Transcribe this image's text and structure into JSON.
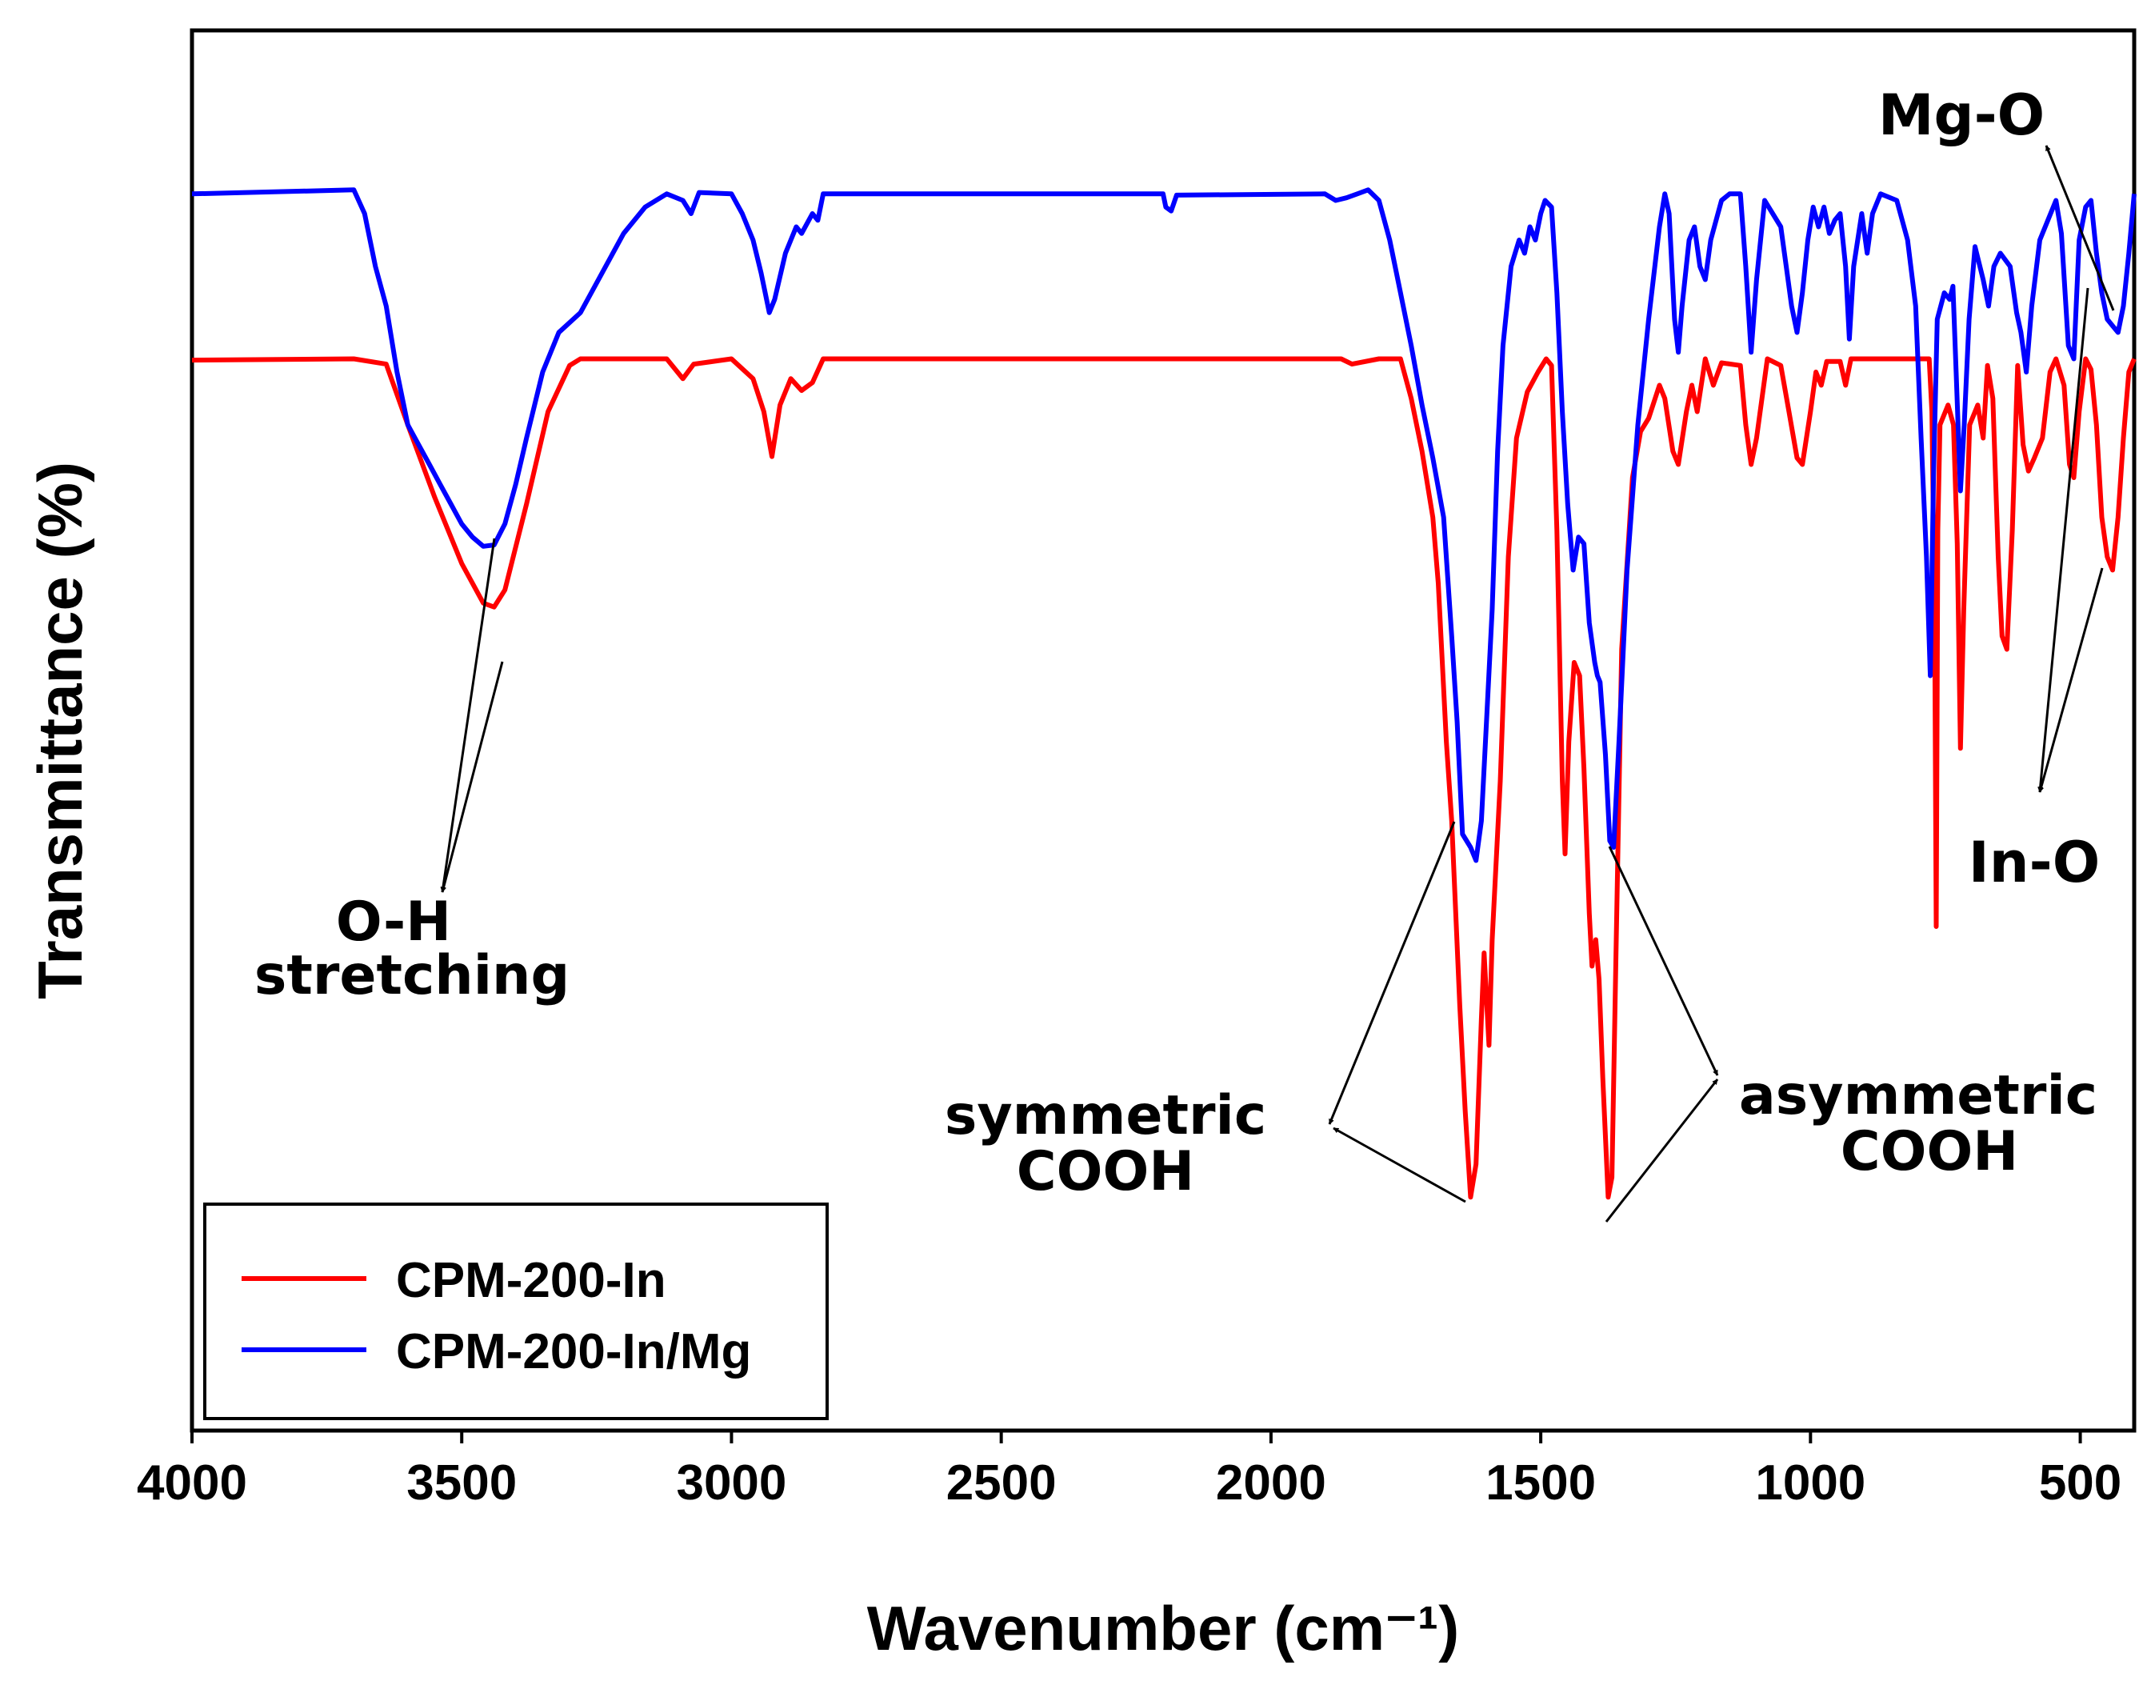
{
  "chart_data": {
    "type": "line",
    "title": "",
    "xlabel": "Wavenumber (cm⁻¹)",
    "ylabel": "Transmittance (%)",
    "xlim": [
      4000,
      400
    ],
    "ylim": [
      0,
      100
    ],
    "x_ticks": [
      {
        "value": 4000,
        "label": "4000"
      },
      {
        "value": 3500,
        "label": "3500"
      },
      {
        "value": 3000,
        "label": "3000"
      },
      {
        "value": 2500,
        "label": "2500"
      },
      {
        "value": 2000,
        "label": "2000"
      },
      {
        "value": 1500,
        "label": "1500"
      },
      {
        "value": 1000,
        "label": "1000"
      },
      {
        "value": 500,
        "label": "500"
      }
    ],
    "y_ticks_shown": false,
    "grid": false,
    "legend_position": "bottom-left",
    "series": [
      {
        "name": "CPM-200-In",
        "color": "#ff0000",
        "points": [
          [
            4000,
            78.9
          ],
          [
            3700,
            79
          ],
          [
            3640,
            78.6
          ],
          [
            3600,
            74
          ],
          [
            3550,
            68.5
          ],
          [
            3500,
            63.5
          ],
          [
            3460,
            60.5
          ],
          [
            3440,
            60.2
          ],
          [
            3420,
            61.5
          ],
          [
            3380,
            68
          ],
          [
            3340,
            75
          ],
          [
            3300,
            78.5
          ],
          [
            3280,
            79
          ],
          [
            3120,
            79
          ],
          [
            3090,
            77.5
          ],
          [
            3070,
            78.6
          ],
          [
            3000,
            79
          ],
          [
            2960,
            77.5
          ],
          [
            2940,
            75
          ],
          [
            2925,
            71.6
          ],
          [
            2910,
            75.5
          ],
          [
            2890,
            77.5
          ],
          [
            2870,
            76.6
          ],
          [
            2850,
            77.2
          ],
          [
            2830,
            79
          ],
          [
            1870,
            79
          ],
          [
            1850,
            78.6
          ],
          [
            1800,
            79
          ],
          [
            1760,
            79
          ],
          [
            1740,
            76
          ],
          [
            1720,
            72
          ],
          [
            1700,
            67
          ],
          [
            1690,
            62
          ],
          [
            1675,
            50
          ],
          [
            1665,
            44
          ],
          [
            1650,
            30
          ],
          [
            1640,
            22
          ],
          [
            1630,
            15.5
          ],
          [
            1620,
            18
          ],
          [
            1610,
            29
          ],
          [
            1605,
            34
          ],
          [
            1596,
            27
          ],
          [
            1590,
            35
          ],
          [
            1575,
            47
          ],
          [
            1560,
            64
          ],
          [
            1545,
            73
          ],
          [
            1525,
            76.5
          ],
          [
            1505,
            78
          ],
          [
            1490,
            79
          ],
          [
            1480,
            78.5
          ],
          [
            1470,
            66
          ],
          [
            1460,
            47
          ],
          [
            1455,
            41.5
          ],
          [
            1448,
            50
          ],
          [
            1438,
            56
          ],
          [
            1428,
            55
          ],
          [
            1420,
            48
          ],
          [
            1410,
            37
          ],
          [
            1405,
            33
          ],
          [
            1398,
            35
          ],
          [
            1392,
            32
          ],
          [
            1385,
            24.5
          ],
          [
            1375,
            15.5
          ],
          [
            1368,
            17
          ],
          [
            1360,
            35
          ],
          [
            1350,
            57
          ],
          [
            1330,
            70
          ],
          [
            1315,
            73.5
          ],
          [
            1300,
            74.5
          ],
          [
            1280,
            77
          ],
          [
            1270,
            76
          ],
          [
            1255,
            72
          ],
          [
            1245,
            71
          ],
          [
            1230,
            75
          ],
          [
            1220,
            77
          ],
          [
            1210,
            75
          ],
          [
            1195,
            79
          ],
          [
            1180,
            77
          ],
          [
            1165,
            78.7
          ],
          [
            1130,
            78.5
          ],
          [
            1120,
            74
          ],
          [
            1110,
            71
          ],
          [
            1100,
            73
          ],
          [
            1080,
            79
          ],
          [
            1055,
            78.5
          ],
          [
            1040,
            75
          ],
          [
            1025,
            71.5
          ],
          [
            1015,
            71
          ],
          [
            1000,
            75
          ],
          [
            990,
            78
          ],
          [
            980,
            77
          ],
          [
            970,
            78.8
          ],
          [
            945,
            78.8
          ],
          [
            935,
            77
          ],
          [
            925,
            79
          ],
          [
            900,
            79
          ],
          [
            780,
            79
          ],
          [
            775,
            75
          ],
          [
            770,
            60
          ],
          [
            767,
            36
          ],
          [
            764,
            66
          ],
          [
            760,
            74
          ],
          [
            745,
            75.5
          ],
          [
            735,
            74
          ],
          [
            728,
            65
          ],
          [
            722,
            49.5
          ],
          [
            716,
            60
          ],
          [
            705,
            74
          ],
          [
            690,
            75.5
          ],
          [
            680,
            73
          ],
          [
            672,
            78.5
          ],
          [
            662,
            76
          ],
          [
            652,
            64
          ],
          [
            645,
            58
          ],
          [
            636,
            57
          ],
          [
            626,
            66
          ],
          [
            616,
            78.5
          ],
          [
            606,
            72.5
          ],
          [
            596,
            70.5
          ],
          [
            585,
            71.5
          ],
          [
            570,
            73
          ],
          [
            556,
            78
          ],
          [
            545,
            79
          ],
          [
            530,
            77
          ],
          [
            520,
            71
          ],
          [
            512,
            70
          ],
          [
            502,
            75
          ],
          [
            490,
            79
          ],
          [
            480,
            78.2
          ],
          [
            470,
            74
          ],
          [
            460,
            67
          ],
          [
            450,
            64
          ],
          [
            440,
            63
          ],
          [
            430,
            67
          ],
          [
            420,
            73
          ],
          [
            410,
            78
          ],
          [
            400,
            79
          ]
        ]
      },
      {
        "name": "CPM-200-In/Mg",
        "color": "#0000ff",
        "points": [
          [
            4000,
            91.5
          ],
          [
            3700,
            91.8
          ],
          [
            3680,
            90
          ],
          [
            3660,
            86
          ],
          [
            3640,
            83
          ],
          [
            3620,
            78
          ],
          [
            3600,
            74
          ],
          [
            3580,
            72.5
          ],
          [
            3560,
            71
          ],
          [
            3540,
            69.5
          ],
          [
            3520,
            68
          ],
          [
            3500,
            66.5
          ],
          [
            3480,
            65.5
          ],
          [
            3460,
            64.8
          ],
          [
            3440,
            64.9
          ],
          [
            3420,
            66.5
          ],
          [
            3400,
            69.5
          ],
          [
            3380,
            73
          ],
          [
            3350,
            78
          ],
          [
            3320,
            81
          ],
          [
            3280,
            82.5
          ],
          [
            3240,
            85.5
          ],
          [
            3200,
            88.5
          ],
          [
            3160,
            90.5
          ],
          [
            3120,
            91.5
          ],
          [
            3090,
            91
          ],
          [
            3075,
            90
          ],
          [
            3060,
            91.6
          ],
          [
            3000,
            91.5
          ],
          [
            2980,
            90
          ],
          [
            2960,
            88
          ],
          [
            2945,
            85.5
          ],
          [
            2930,
            82.5
          ],
          [
            2920,
            83.5
          ],
          [
            2900,
            87
          ],
          [
            2880,
            89
          ],
          [
            2870,
            88.5
          ],
          [
            2850,
            90
          ],
          [
            2840,
            89.5
          ],
          [
            2830,
            91.5
          ],
          [
            2200,
            91.5
          ],
          [
            2195,
            90.5
          ],
          [
            2185,
            90.2
          ],
          [
            2175,
            91.4
          ],
          [
            1900,
            91.5
          ],
          [
            1880,
            91
          ],
          [
            1860,
            91.2
          ],
          [
            1840,
            91.5
          ],
          [
            1820,
            91.8
          ],
          [
            1800,
            91
          ],
          [
            1780,
            88
          ],
          [
            1760,
            84
          ],
          [
            1740,
            80
          ],
          [
            1720,
            75.5
          ],
          [
            1700,
            71.5
          ],
          [
            1680,
            67
          ],
          [
            1665,
            58
          ],
          [
            1655,
            51.5
          ],
          [
            1645,
            43
          ],
          [
            1630,
            42
          ],
          [
            1620,
            41
          ],
          [
            1610,
            44
          ],
          [
            1600,
            52
          ],
          [
            1590,
            60
          ],
          [
            1580,
            72
          ],
          [
            1570,
            80
          ],
          [
            1555,
            86
          ],
          [
            1540,
            88
          ],
          [
            1530,
            87
          ],
          [
            1520,
            89
          ],
          [
            1510,
            88
          ],
          [
            1500,
            90
          ],
          [
            1492,
            91
          ],
          [
            1480,
            90.5
          ],
          [
            1470,
            84
          ],
          [
            1460,
            75
          ],
          [
            1450,
            68
          ],
          [
            1440,
            63
          ],
          [
            1430,
            65.5
          ],
          [
            1420,
            65
          ],
          [
            1410,
            59
          ],
          [
            1400,
            56
          ],
          [
            1395,
            55
          ],
          [
            1390,
            54.5
          ],
          [
            1380,
            49
          ],
          [
            1372,
            42.5
          ],
          [
            1365,
            42
          ],
          [
            1355,
            50
          ],
          [
            1340,
            63
          ],
          [
            1320,
            74
          ],
          [
            1300,
            82
          ],
          [
            1280,
            89
          ],
          [
            1270,
            91.5
          ],
          [
            1262,
            90
          ],
          [
            1252,
            82
          ],
          [
            1245,
            79.5
          ],
          [
            1238,
            83
          ],
          [
            1225,
            88
          ],
          [
            1215,
            89
          ],
          [
            1205,
            86
          ],
          [
            1195,
            85
          ],
          [
            1185,
            88
          ],
          [
            1165,
            91
          ],
          [
            1150,
            91.5
          ],
          [
            1130,
            91.5
          ],
          [
            1120,
            86
          ],
          [
            1110,
            79.5
          ],
          [
            1100,
            85
          ],
          [
            1085,
            91
          ],
          [
            1070,
            90
          ],
          [
            1055,
            89
          ],
          [
            1045,
            86
          ],
          [
            1035,
            83
          ],
          [
            1025,
            81
          ],
          [
            1015,
            84
          ],
          [
            1005,
            88
          ],
          [
            995,
            90.5
          ],
          [
            985,
            89
          ],
          [
            975,
            90.5
          ],
          [
            965,
            88.5
          ],
          [
            955,
            89.5
          ],
          [
            945,
            90
          ],
          [
            935,
            86
          ],
          [
            928,
            80.5
          ],
          [
            920,
            86
          ],
          [
            905,
            90
          ],
          [
            895,
            87
          ],
          [
            885,
            90
          ],
          [
            870,
            91.5
          ],
          [
            840,
            91
          ],
          [
            820,
            88
          ],
          [
            805,
            83
          ],
          [
            795,
            73
          ],
          [
            785,
            64
          ],
          [
            778,
            55
          ],
          [
            772,
            70
          ],
          [
            765,
            82
          ],
          [
            752,
            84
          ],
          [
            742,
            83.5
          ],
          [
            736,
            84.5
          ],
          [
            730,
            78
          ],
          [
            722,
            69
          ],
          [
            715,
            74
          ],
          [
            706,
            82
          ],
          [
            695,
            87.5
          ],
          [
            680,
            85
          ],
          [
            670,
            83
          ],
          [
            660,
            86
          ],
          [
            648,
            87
          ],
          [
            630,
            86
          ],
          [
            618,
            82.5
          ],
          [
            610,
            81
          ],
          [
            600,
            78
          ],
          [
            590,
            83
          ],
          [
            575,
            88
          ],
          [
            560,
            89.5
          ],
          [
            545,
            91
          ],
          [
            535,
            88.5
          ],
          [
            522,
            80
          ],
          [
            512,
            79
          ],
          [
            502,
            88
          ],
          [
            490,
            90.5
          ],
          [
            480,
            91
          ],
          [
            470,
            87
          ],
          [
            460,
            84
          ],
          [
            450,
            82
          ],
          [
            440,
            81.5
          ],
          [
            430,
            81
          ],
          [
            420,
            83
          ],
          [
            410,
            87
          ],
          [
            400,
            91.5
          ]
        ]
      }
    ],
    "annotations": {
      "oh": {
        "line1": "O-H",
        "line2": "stretching",
        "peaks_x": [
          3460,
          3440
        ]
      },
      "sym": {
        "line1": "symmetric",
        "line2": "COOH"
      },
      "asym": {
        "line1": "asymmetric",
        "line2": "COOH"
      },
      "mgo": {
        "label": "Mg-O"
      },
      "ino": {
        "label": "In-O"
      }
    }
  },
  "colors": {
    "in": "#ff0000",
    "inmg": "#0000ff",
    "axis": "#000000"
  }
}
